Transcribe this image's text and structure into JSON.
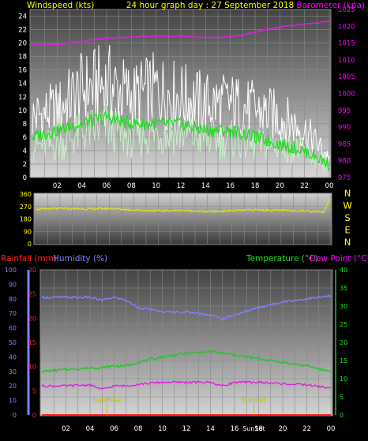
{
  "panel_wind": {
    "left_title": "Windspeed (kts)",
    "center_title": "24 hour graph day : 27 September 2018",
    "right_title": "Barometer (kpa)",
    "left_ticks": [
      "24",
      "22",
      "20",
      "18",
      "16",
      "14",
      "12",
      "10",
      "8",
      "6",
      "4",
      "2",
      "0"
    ],
    "right_ticks": [
      "1025",
      "1020",
      "1015",
      "1010",
      "1005",
      "1000",
      "995",
      "990",
      "985",
      "980",
      "975"
    ],
    "x_ticks": [
      "02",
      "04",
      "06",
      "08",
      "10",
      "12",
      "14",
      "16",
      "18",
      "20",
      "22",
      "00"
    ]
  },
  "panel_dir": {
    "ticks": [
      "360",
      "270",
      "180",
      "90",
      "0"
    ],
    "compass": [
      "N",
      "W",
      "S",
      "E",
      "N"
    ]
  },
  "panel_weather": {
    "rain_label": "Rainfall (mm)",
    "hum_label": "Humidity (%)",
    "temp_label": "Temperature (°C)",
    "dew_label": "Dew Point (°C)",
    "hum_ticks": [
      "100",
      "90",
      "80",
      "70",
      "60",
      "50",
      "40",
      "30",
      "20",
      "10",
      "0"
    ],
    "rain_ticks": [
      "30",
      "25",
      "20",
      "15",
      "10",
      "5",
      "0"
    ],
    "temp_ticks": [
      "40",
      "35",
      "30",
      "25",
      "20",
      "15",
      "10",
      "5",
      "0"
    ],
    "x_ticks": [
      "02",
      "04",
      "06",
      "08",
      "10",
      "12",
      "14",
      "16",
      "18",
      "20",
      "22",
      "00"
    ],
    "sunrise_label": "SunRise",
    "sunset_label": "SunSet",
    "sunset_label_bottom": "SunSet"
  },
  "colors": {
    "gust": "#ffffff",
    "wind": "#c8f0c8",
    "wind_avg": "#22dd22",
    "barometer": "#e020e0",
    "direction": "#e8e800",
    "humidity": "#8080ff",
    "rain": "#ff2020",
    "temperature": "#20c820",
    "dewpoint": "#e020e0",
    "sun_marker": "#c0c000"
  },
  "chart_data": [
    {
      "type": "line",
      "title": "24 hour graph day : 27 September 2018",
      "ylabel": "Windspeed (kts)",
      "y2label": "Barometer (kpa)",
      "ylim": [
        0,
        25
      ],
      "y2lim": [
        975,
        1025
      ],
      "x": [
        0,
        2,
        4,
        6,
        8,
        10,
        12,
        14,
        16,
        18,
        20,
        22,
        24
      ],
      "x_tick_labels": [
        "00",
        "02",
        "04",
        "06",
        "08",
        "10",
        "12",
        "14",
        "16",
        "18",
        "20",
        "22",
        "00"
      ],
      "series": [
        {
          "role": "gust",
          "axis": "left",
          "values": [
            9,
            10,
            13,
            14,
            12,
            13,
            12,
            11,
            11,
            10,
            9,
            7,
            3
          ]
        },
        {
          "role": "wind",
          "axis": "left",
          "values": [
            5,
            5,
            7,
            8,
            6,
            7,
            7,
            6,
            6,
            5,
            5,
            4,
            1
          ]
        },
        {
          "role": "wind_avg",
          "axis": "left",
          "values": [
            6,
            7,
            8,
            9,
            8,
            8,
            8,
            7,
            7,
            6,
            5,
            4,
            2
          ]
        },
        {
          "role": "barometer",
          "axis": "right",
          "values": [
            1014.5,
            1014.5,
            1015.5,
            1016.5,
            1016.8,
            1017,
            1017,
            1016.6,
            1016.8,
            1018.2,
            1019.8,
            1020.6,
            1021.5
          ]
        }
      ]
    },
    {
      "type": "line",
      "ylim": [
        0,
        360
      ],
      "x": [
        0,
        2,
        4,
        6,
        8,
        10,
        12,
        14,
        16,
        18,
        20,
        22,
        23.5,
        24
      ],
      "series": [
        {
          "role": "direction",
          "values": [
            250,
            255,
            252,
            255,
            245,
            238,
            242,
            232,
            240,
            245,
            242,
            238,
            230,
            330
          ]
        }
      ]
    },
    {
      "type": "line",
      "ylabel": "Humidity (%)",
      "y2label": "Rainfall (mm)",
      "y3label": "Temperature (°C)",
      "y4label": "Dew Point (°C)",
      "ylim": [
        0,
        100
      ],
      "rain_lim": [
        0,
        30
      ],
      "temp_lim": [
        0,
        40
      ],
      "x": [
        0,
        2,
        4,
        5,
        6,
        7,
        8,
        10,
        12,
        14,
        15,
        16,
        18,
        20,
        22,
        24
      ],
      "series": [
        {
          "role": "humidity",
          "axis": "humidity",
          "values": [
            81,
            81,
            81,
            79,
            81,
            79,
            74,
            71,
            71,
            69,
            66,
            69,
            74,
            78,
            80,
            82
          ]
        },
        {
          "role": "rain",
          "axis": "rain",
          "values": [
            0,
            0,
            0,
            0,
            0,
            0,
            0,
            0,
            0,
            0,
            0,
            0,
            0,
            0,
            0,
            0
          ]
        },
        {
          "role": "temperature",
          "axis": "temp",
          "values": [
            12,
            12.5,
            13,
            13,
            13.5,
            13.5,
            14.5,
            16,
            17,
            17.5,
            17,
            16.5,
            15.5,
            14.5,
            13.5,
            12
          ]
        },
        {
          "role": "dewpoint",
          "axis": "temp",
          "values": [
            8,
            8,
            8.3,
            7,
            8,
            8,
            8.5,
            9,
            9,
            9,
            8,
            9,
            9,
            8.6,
            8.3,
            7.4
          ]
        }
      ],
      "sunrise_hour": 5.4,
      "sunset_hour": 17.6
    }
  ]
}
